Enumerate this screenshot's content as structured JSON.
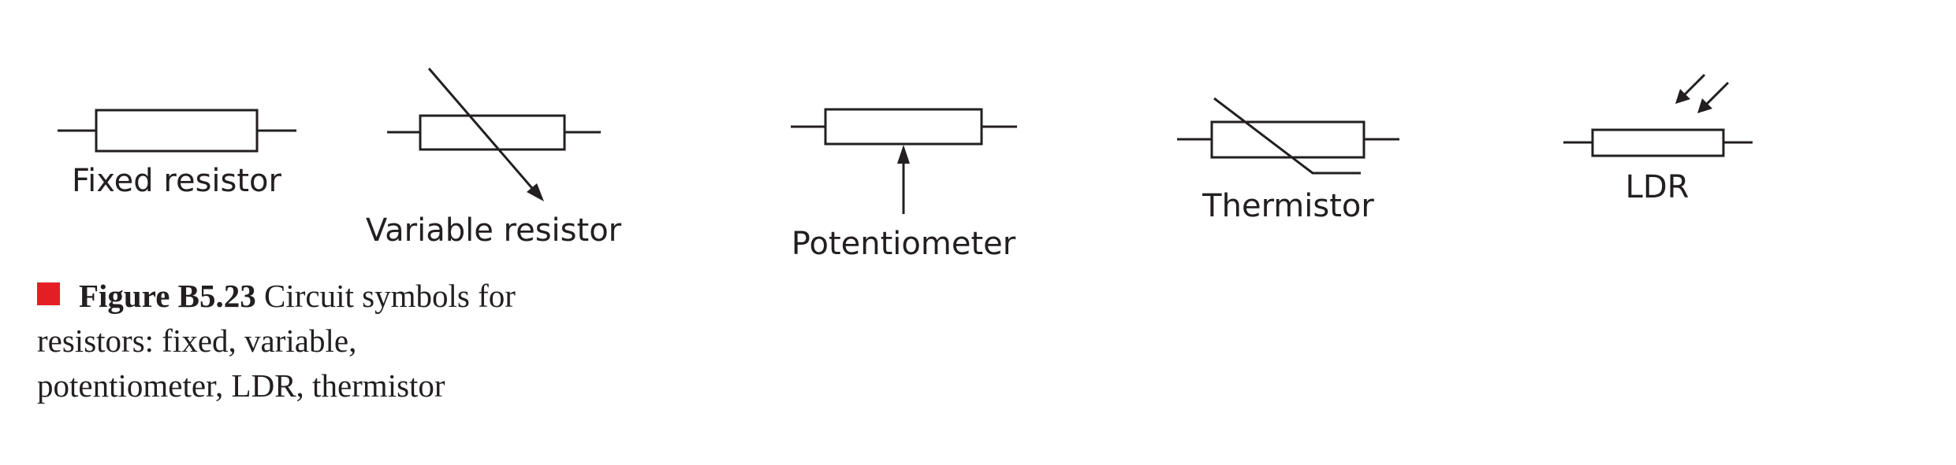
{
  "symbols": [
    {
      "id": "fixed",
      "label": "Fixed resistor"
    },
    {
      "id": "variable",
      "label": "Variable resistor"
    },
    {
      "id": "potentiometer",
      "label": "Potentiometer"
    },
    {
      "id": "thermistor",
      "label": "Thermistor"
    },
    {
      "id": "ldr",
      "label": "LDR"
    }
  ],
  "caption": {
    "figure_number": "Figure B5.23",
    "text": " Circuit symbols for resistors: fixed, variable, potentiometer, LDR, thermistor",
    "marker_color": "#e31e24"
  },
  "stroke_color": "#231f20"
}
